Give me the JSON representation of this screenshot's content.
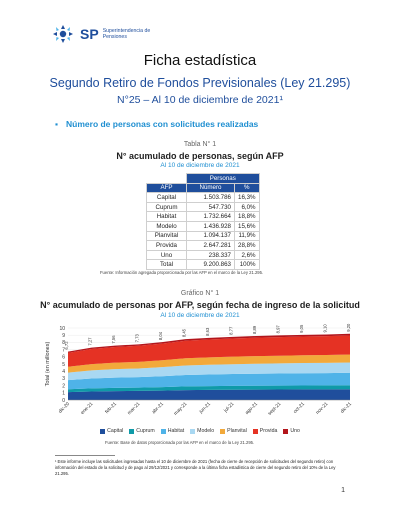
{
  "header": {
    "logo_text": "SP",
    "logo_sub1": "Superintendencia de",
    "logo_sub2": "Pensiones"
  },
  "title": "Ficha estadística",
  "subtitle": "Segundo Retiro de Fondos Previsionales (Ley 21.295)",
  "subtitle2": "N°25 – Al 10 de diciembre de 2021¹",
  "section": "Número de personas con solicitudes realizadas",
  "table": {
    "caption": "Tabla N° 1",
    "title": "N° acumulado de personas, según AFP",
    "subtitle": "Al 10 de diciembre de 2021",
    "group_header": "Personas",
    "headers": [
      "AFP",
      "Número",
      "%"
    ],
    "rows": [
      {
        "afp": "Capital",
        "numero": "1.503.786",
        "pct": "16,3%"
      },
      {
        "afp": "Cuprum",
        "numero": "547.730",
        "pct": "6,0%"
      },
      {
        "afp": "Habitat",
        "numero": "1.732.664",
        "pct": "18,8%"
      },
      {
        "afp": "Modelo",
        "numero": "1.436.928",
        "pct": "15,6%"
      },
      {
        "afp": "Planvital",
        "numero": "1.094.137",
        "pct": "11,9%"
      },
      {
        "afp": "Provida",
        "numero": "2.647.281",
        "pct": "28,8%"
      },
      {
        "afp": "Uno",
        "numero": "238.337",
        "pct": "2,6%"
      },
      {
        "afp": "Total",
        "numero": "9.200.863",
        "pct": "100%"
      }
    ],
    "source": "Fuente: Información agregada proporcionada por las AFP en el marco de la Ley 21.295."
  },
  "chart_data": {
    "type": "area",
    "caption": "Gráfico N° 1",
    "title": "N° acumulado de personas por AFP, según fecha de ingreso de la solicitud",
    "subtitle": "Al 10 de diciembre de 2021",
    "ylabel": "Total (en millones)",
    "ylim": [
      0,
      10
    ],
    "yticks": [
      0,
      1,
      2,
      3,
      4,
      5,
      6,
      7,
      8,
      9,
      10
    ],
    "categories": [
      "dic-20",
      "ene-21",
      "feb-21",
      "mar-21",
      "abr-21",
      "may-21",
      "jun-21",
      "jul-21",
      "ago-21",
      "sept-21",
      "oct-21",
      "nov-21",
      "dic-21"
    ],
    "total_labels": [
      "6,72",
      "7,27",
      "7,56",
      "7,73",
      "8,04",
      "8,45",
      "8,63",
      "8,77",
      "8,89",
      "8,97",
      "9,05",
      "9,10",
      "9,20"
    ],
    "totals": [
      6.72,
      7.27,
      7.56,
      7.73,
      8.04,
      8.45,
      8.63,
      8.77,
      8.89,
      8.97,
      9.05,
      9.1,
      9.2
    ],
    "share": [
      0.163,
      0.06,
      0.188,
      0.156,
      0.119,
      0.288,
      0.026
    ],
    "series": [
      {
        "name": "Capital",
        "color": "#1f4e9c"
      },
      {
        "name": "Cuprum",
        "color": "#0f9aa8"
      },
      {
        "name": "Habitat",
        "color": "#4fb3e8"
      },
      {
        "name": "Modelo",
        "color": "#a9d8f2"
      },
      {
        "name": "Planvital",
        "color": "#f2a93b"
      },
      {
        "name": "Provida",
        "color": "#e53224"
      },
      {
        "name": "Uno",
        "color": "#b3151b"
      }
    ],
    "legend": "bottom",
    "source": "Fuente: Base de datos proporcionada por las AFP en el marco de la Ley 21.295."
  },
  "footnote": "¹ Este informe incluye las solicitudes ingresadas hasta el 10 de diciembre de 2021 (fecha de cierre de recepción de solicitudes del segundo retiro) con información del estado de la solicitud y de pago al 29/12/2021 y corresponde a la última ficha estadística de cierre del segundo retiro del 10% de la Ley 21.295.",
  "page_number": "1"
}
